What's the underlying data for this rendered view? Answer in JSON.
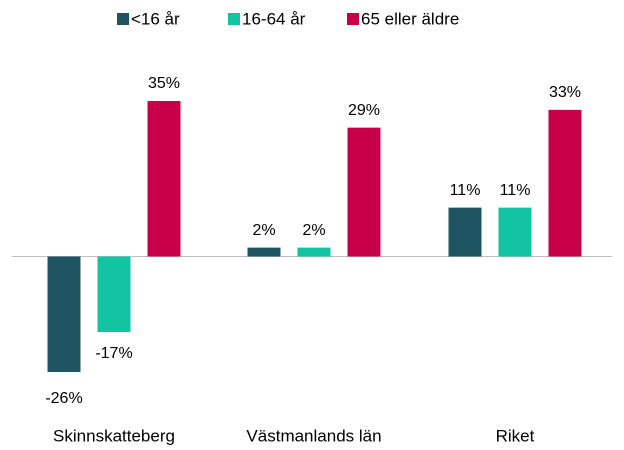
{
  "chart_data": {
    "type": "bar",
    "categories": [
      "Skinnskatteberg",
      "Västmanlands län",
      "Riket"
    ],
    "series": [
      {
        "name": "<16 år",
        "color": "#1f5562",
        "values": [
          -26,
          2,
          11
        ],
        "value_labels": [
          "-26%",
          "2%",
          "11%"
        ]
      },
      {
        "name": "16-64 år",
        "color": "#13c4a3",
        "values": [
          -17,
          2,
          11
        ],
        "value_labels": [
          "-17%",
          "2%",
          "11%"
        ]
      },
      {
        "name": "65 eller äldre",
        "color": "#c8004a",
        "values": [
          35,
          29,
          33
        ],
        "value_labels": [
          "35%",
          "29%",
          "33%"
        ]
      }
    ],
    "legend": "top"
  }
}
